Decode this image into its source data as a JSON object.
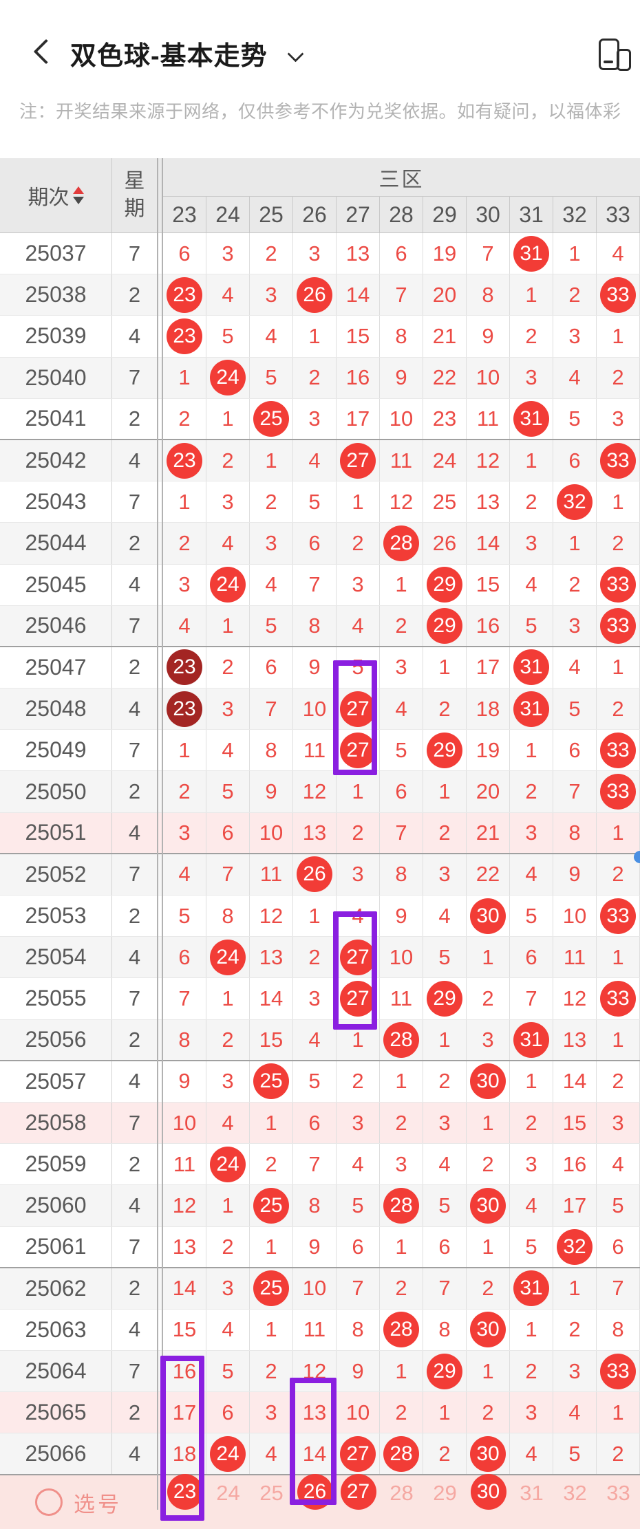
{
  "nav": {
    "title": "双色球-基本走势",
    "back_icon": "chevron-left",
    "dropdown_icon": "chevron-down",
    "window_icon": "multi-window"
  },
  "notice": "注：开奖结果来源于网络，仅供参考不作为兑奖依据。如有疑问，以福体彩",
  "table": {
    "period_header": "期次",
    "week_header": [
      "星",
      "期"
    ],
    "zone_header": "三区",
    "columns": [
      "23",
      "24",
      "25",
      "26",
      "27",
      "28",
      "29",
      "30",
      "31",
      "32",
      "33"
    ],
    "rows": [
      {
        "period": "25037",
        "week": "7",
        "cells": [
          6,
          3,
          2,
          3,
          13,
          6,
          19,
          7,
          "C31",
          1,
          4
        ]
      },
      {
        "period": "25038",
        "week": "2",
        "cells": [
          "C23",
          4,
          3,
          "C26",
          14,
          7,
          20,
          8,
          1,
          2,
          "C33"
        ]
      },
      {
        "period": "25039",
        "week": "4",
        "cells": [
          "C23",
          5,
          4,
          1,
          15,
          8,
          21,
          9,
          2,
          3,
          1
        ]
      },
      {
        "period": "25040",
        "week": "7",
        "cells": [
          1,
          "C24",
          5,
          2,
          16,
          9,
          22,
          10,
          3,
          4,
          2
        ]
      },
      {
        "period": "25041",
        "week": "2",
        "cells": [
          2,
          1,
          "C25",
          3,
          17,
          10,
          23,
          11,
          "C31",
          5,
          3
        ]
      },
      {
        "period": "25042",
        "week": "4",
        "cells": [
          "C23",
          2,
          1,
          4,
          "C27",
          11,
          24,
          12,
          1,
          6,
          "C33"
        ]
      },
      {
        "period": "25043",
        "week": "7",
        "cells": [
          1,
          3,
          2,
          5,
          1,
          12,
          25,
          13,
          2,
          "C32",
          1
        ]
      },
      {
        "period": "25044",
        "week": "2",
        "cells": [
          2,
          4,
          3,
          6,
          2,
          "C28",
          26,
          14,
          3,
          1,
          2
        ]
      },
      {
        "period": "25045",
        "week": "4",
        "cells": [
          3,
          "C24",
          4,
          7,
          3,
          1,
          "C29",
          15,
          4,
          2,
          "C33"
        ]
      },
      {
        "period": "25046",
        "week": "7",
        "cells": [
          4,
          1,
          5,
          8,
          4,
          2,
          "C29",
          16,
          5,
          3,
          "C33"
        ]
      },
      {
        "period": "25047",
        "week": "2",
        "cells": [
          "D23",
          2,
          6,
          9,
          5,
          3,
          1,
          17,
          "C31",
          4,
          1
        ]
      },
      {
        "period": "25048",
        "week": "4",
        "cells": [
          "D23",
          3,
          7,
          10,
          "C27",
          4,
          2,
          18,
          "C31",
          5,
          2
        ]
      },
      {
        "period": "25049",
        "week": "7",
        "cells": [
          1,
          4,
          8,
          11,
          "C27",
          5,
          "C29",
          19,
          1,
          6,
          "C33"
        ]
      },
      {
        "period": "25050",
        "week": "2",
        "cells": [
          2,
          5,
          9,
          12,
          1,
          6,
          1,
          20,
          2,
          7,
          "C33"
        ]
      },
      {
        "period": "25051",
        "week": "4",
        "cells": [
          3,
          6,
          10,
          13,
          2,
          7,
          2,
          21,
          3,
          8,
          1
        ],
        "tint": "pink"
      },
      {
        "period": "25052",
        "week": "7",
        "cells": [
          4,
          7,
          11,
          "C26",
          3,
          8,
          3,
          22,
          4,
          9,
          2
        ]
      },
      {
        "period": "25053",
        "week": "2",
        "cells": [
          5,
          8,
          12,
          1,
          4,
          9,
          4,
          "C30",
          5,
          10,
          "C33"
        ]
      },
      {
        "period": "25054",
        "week": "4",
        "cells": [
          6,
          "C24",
          13,
          2,
          "C27",
          10,
          5,
          1,
          6,
          11,
          1
        ]
      },
      {
        "period": "25055",
        "week": "7",
        "cells": [
          7,
          1,
          14,
          3,
          "C27",
          11,
          "C29",
          2,
          7,
          12,
          "C33"
        ]
      },
      {
        "period": "25056",
        "week": "2",
        "cells": [
          8,
          2,
          15,
          4,
          1,
          "C28",
          1,
          3,
          "C31",
          13,
          1
        ]
      },
      {
        "period": "25057",
        "week": "4",
        "cells": [
          9,
          3,
          "C25",
          5,
          2,
          1,
          2,
          "C30",
          1,
          14,
          2
        ]
      },
      {
        "period": "25058",
        "week": "7",
        "cells": [
          10,
          4,
          1,
          6,
          3,
          2,
          3,
          1,
          2,
          15,
          3
        ],
        "tint": "pink"
      },
      {
        "period": "25059",
        "week": "2",
        "cells": [
          11,
          "C24",
          2,
          7,
          4,
          3,
          4,
          2,
          3,
          16,
          4
        ]
      },
      {
        "period": "25060",
        "week": "4",
        "cells": [
          12,
          1,
          "C25",
          8,
          5,
          "C28",
          5,
          "C30",
          4,
          17,
          5
        ]
      },
      {
        "period": "25061",
        "week": "7",
        "cells": [
          13,
          2,
          1,
          9,
          6,
          1,
          6,
          1,
          5,
          "C32",
          6
        ]
      },
      {
        "period": "25062",
        "week": "2",
        "cells": [
          14,
          3,
          "C25",
          10,
          7,
          2,
          7,
          2,
          "C31",
          1,
          7
        ]
      },
      {
        "period": "25063",
        "week": "4",
        "cells": [
          15,
          4,
          1,
          11,
          8,
          "C28",
          8,
          "C30",
          1,
          2,
          8
        ]
      },
      {
        "period": "25064",
        "week": "7",
        "cells": [
          16,
          5,
          2,
          12,
          9,
          1,
          "C29",
          1,
          2,
          3,
          "C33"
        ]
      },
      {
        "period": "25065",
        "week": "2",
        "cells": [
          17,
          6,
          3,
          13,
          10,
          2,
          1,
          2,
          3,
          4,
          1
        ],
        "tint": "pink"
      },
      {
        "period": "25066",
        "week": "4",
        "cells": [
          18,
          "C24",
          4,
          14,
          "C27",
          "C28",
          2,
          "C30",
          4,
          5,
          2
        ]
      }
    ],
    "pick_row": {
      "label": "选号",
      "cells": [
        "C23",
        24,
        25,
        "C26",
        "C27",
        28,
        29,
        "C30",
        31,
        32,
        33
      ]
    }
  },
  "highlights": [
    {
      "column": "27",
      "from_period": "25047",
      "to_period": "25049"
    },
    {
      "column": "27",
      "from_period": "25053",
      "to_period": "25055"
    },
    {
      "column": "23",
      "from_period": "25064",
      "to_period": "选号"
    },
    {
      "column": "26",
      "from_period": "25065",
      "to_period": "选号"
    }
  ],
  "colors": {
    "ball_red": "#f23c36",
    "ball_dark_red": "#a32523",
    "text_red": "#ec4b45",
    "pink_row_bg": "#fdeaea",
    "pick_row_bg": "#fbe5e2",
    "pick_text": "#f0908a",
    "pick_number": "#f5a8a2",
    "highlight_purple": "#8a1fe0",
    "header_bg": "#e9e9e9"
  }
}
